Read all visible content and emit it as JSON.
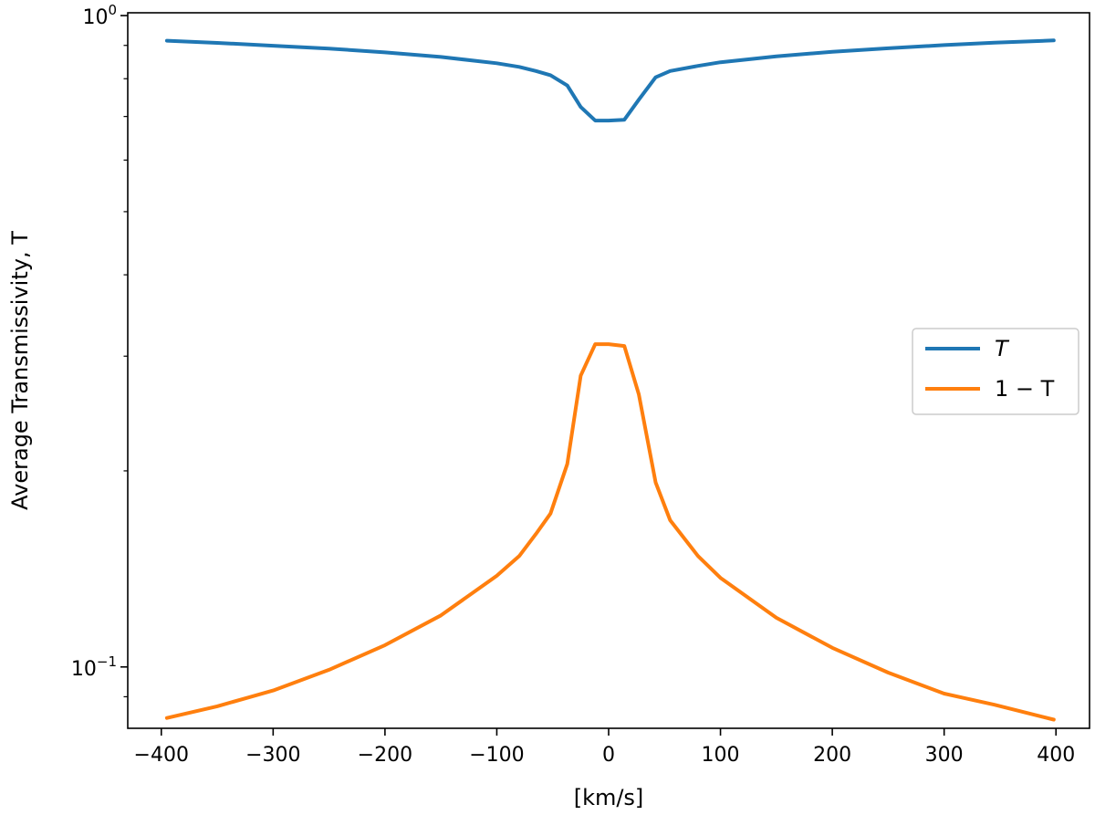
{
  "chart_data": {
    "type": "line",
    "xlabel": "[km/s]",
    "ylabel": "Average Transmissivity, T",
    "yscale": "log",
    "xlim": [
      -430,
      430
    ],
    "ylim": [
      0.0805,
      1.01
    ],
    "xticks": [
      {
        "value": -400,
        "label": "−400"
      },
      {
        "value": -300,
        "label": "−300"
      },
      {
        "value": -200,
        "label": "−200"
      },
      {
        "value": -100,
        "label": "−100"
      },
      {
        "value": 0,
        "label": "0"
      },
      {
        "value": 100,
        "label": "100"
      },
      {
        "value": 200,
        "label": "200"
      },
      {
        "value": 300,
        "label": "300"
      },
      {
        "value": 400,
        "label": "400"
      }
    ],
    "yticks_major": [
      {
        "value": 1.0,
        "base": "10",
        "exp": "0"
      },
      {
        "value": 0.1,
        "base": "10",
        "exp": "−1"
      }
    ],
    "yticks_minor": [
      0.09,
      0.2,
      0.3,
      0.4,
      0.5,
      0.6,
      0.7,
      0.8,
      0.9
    ],
    "grid": false,
    "legend_position": "center-right",
    "x": [
      -395,
      -350,
      -300,
      -250,
      -200,
      -150,
      -100,
      -80,
      -65,
      -52,
      -37,
      -25,
      -12,
      0,
      14,
      27,
      42,
      55,
      80,
      100,
      150,
      200,
      250,
      300,
      345,
      398
    ],
    "series": [
      {
        "name": "T",
        "color": "#1f77b4",
        "values": [
          0.915,
          0.908,
          0.899,
          0.89,
          0.878,
          0.864,
          0.845,
          0.834,
          0.822,
          0.81,
          0.781,
          0.724,
          0.69,
          0.69,
          0.692,
          0.743,
          0.804,
          0.822,
          0.837,
          0.848,
          0.866,
          0.88,
          0.891,
          0.901,
          0.909,
          0.916
        ]
      },
      {
        "name": "1 − T",
        "color": "#ff7f0e",
        "values": [
          0.0835,
          0.087,
          0.092,
          0.099,
          0.108,
          0.12,
          0.138,
          0.148,
          0.16,
          0.172,
          0.205,
          0.28,
          0.313,
          0.313,
          0.311,
          0.262,
          0.192,
          0.168,
          0.148,
          0.137,
          0.119,
          0.107,
          0.098,
          0.091,
          0.0875,
          0.083
        ]
      }
    ]
  }
}
